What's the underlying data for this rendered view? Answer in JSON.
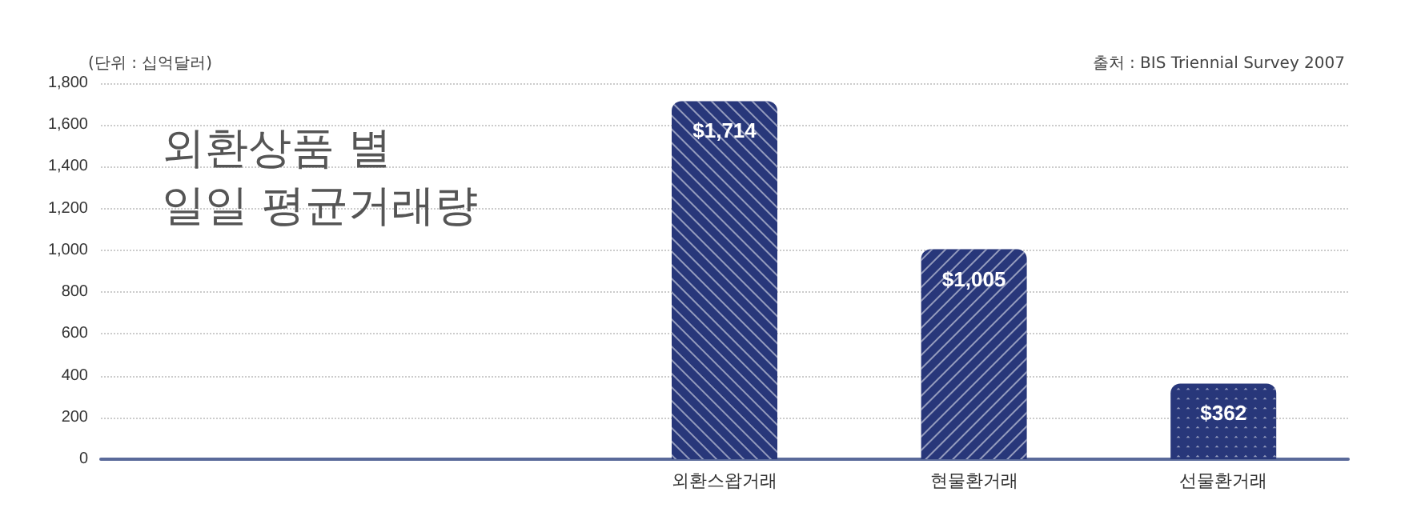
{
  "chart_data": {
    "type": "bar",
    "title": "외환상품 별\n일일 평균거래량",
    "ylabel": "(단위 : 십억달러)",
    "annotations": [
      "출처 : BIS Triennial Survey 2007"
    ],
    "categories": [
      null,
      null,
      "외환스왑거래",
      "현물환거래",
      "선물환거래"
    ],
    "values": [
      null,
      null,
      1714,
      1005,
      362
    ],
    "value_labels": [
      null,
      null,
      "$1,714",
      "$1,005",
      "$362"
    ],
    "color": "#28377a",
    "ylim": [
      0,
      1800
    ],
    "yticks": [
      0,
      200,
      400,
      600,
      800,
      {
        "value": 1000,
        "label": "1,000"
      },
      {
        "value": 1200,
        "label": "1,200"
      },
      {
        "value": 1400,
        "label": "1,400"
      },
      {
        "value": 1600,
        "label": "1,600"
      },
      {
        "value": 1800,
        "label": "1,800"
      }
    ],
    "grid": "y"
  }
}
